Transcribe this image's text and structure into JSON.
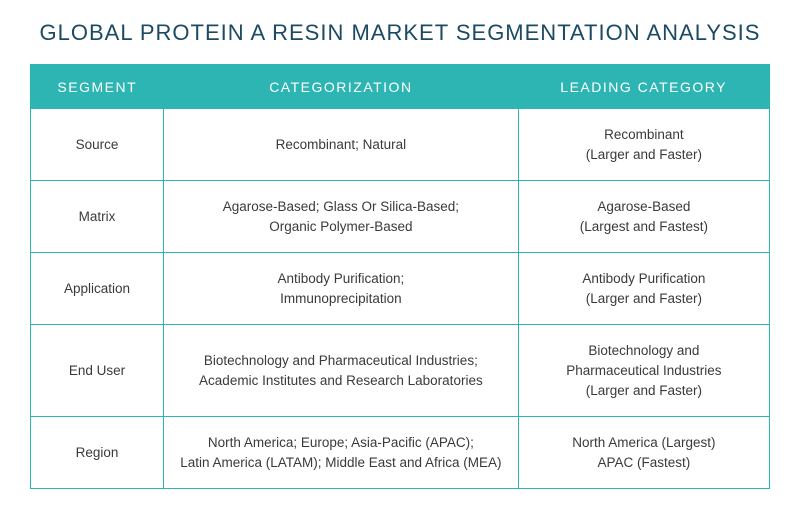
{
  "title": "GLOBAL PROTEIN A RESIN MARKET SEGMENTATION ANALYSIS",
  "colors": {
    "title": "#1b4a63",
    "header_bg": "#2cb5b2",
    "header_text": "#ffffff",
    "cell_text": "#3a3a3a",
    "border": "#2cb5b2",
    "outer_border": "#2cb5b2"
  },
  "columns": [
    "SEGMENT",
    "CATEGORIZATION",
    "LEADING CATEGORY"
  ],
  "rows": [
    {
      "segment": "Source",
      "categorization": "Recombinant; Natural",
      "leading": "Recombinant\n(Larger and Faster)"
    },
    {
      "segment": "Matrix",
      "categorization": "Agarose-Based; Glass Or Silica-Based;\nOrganic Polymer-Based",
      "leading": "Agarose-Based\n(Largest and Fastest)"
    },
    {
      "segment": "Application",
      "categorization": "Antibody Purification;\nImmunoprecipitation",
      "leading": "Antibody Purification\n(Larger and Faster)"
    },
    {
      "segment": "End User",
      "categorization": "Biotechnology and Pharmaceutical Industries;\nAcademic Institutes and Research Laboratories",
      "leading": "Biotechnology and\nPharmaceutical Industries\n(Larger and Faster)"
    },
    {
      "segment": "Region",
      "categorization": "North America; Europe; Asia-Pacific (APAC);\nLatin America (LATAM); Middle East and Africa (MEA)",
      "leading": "North America (Largest)\nAPAC (Fastest)"
    }
  ]
}
